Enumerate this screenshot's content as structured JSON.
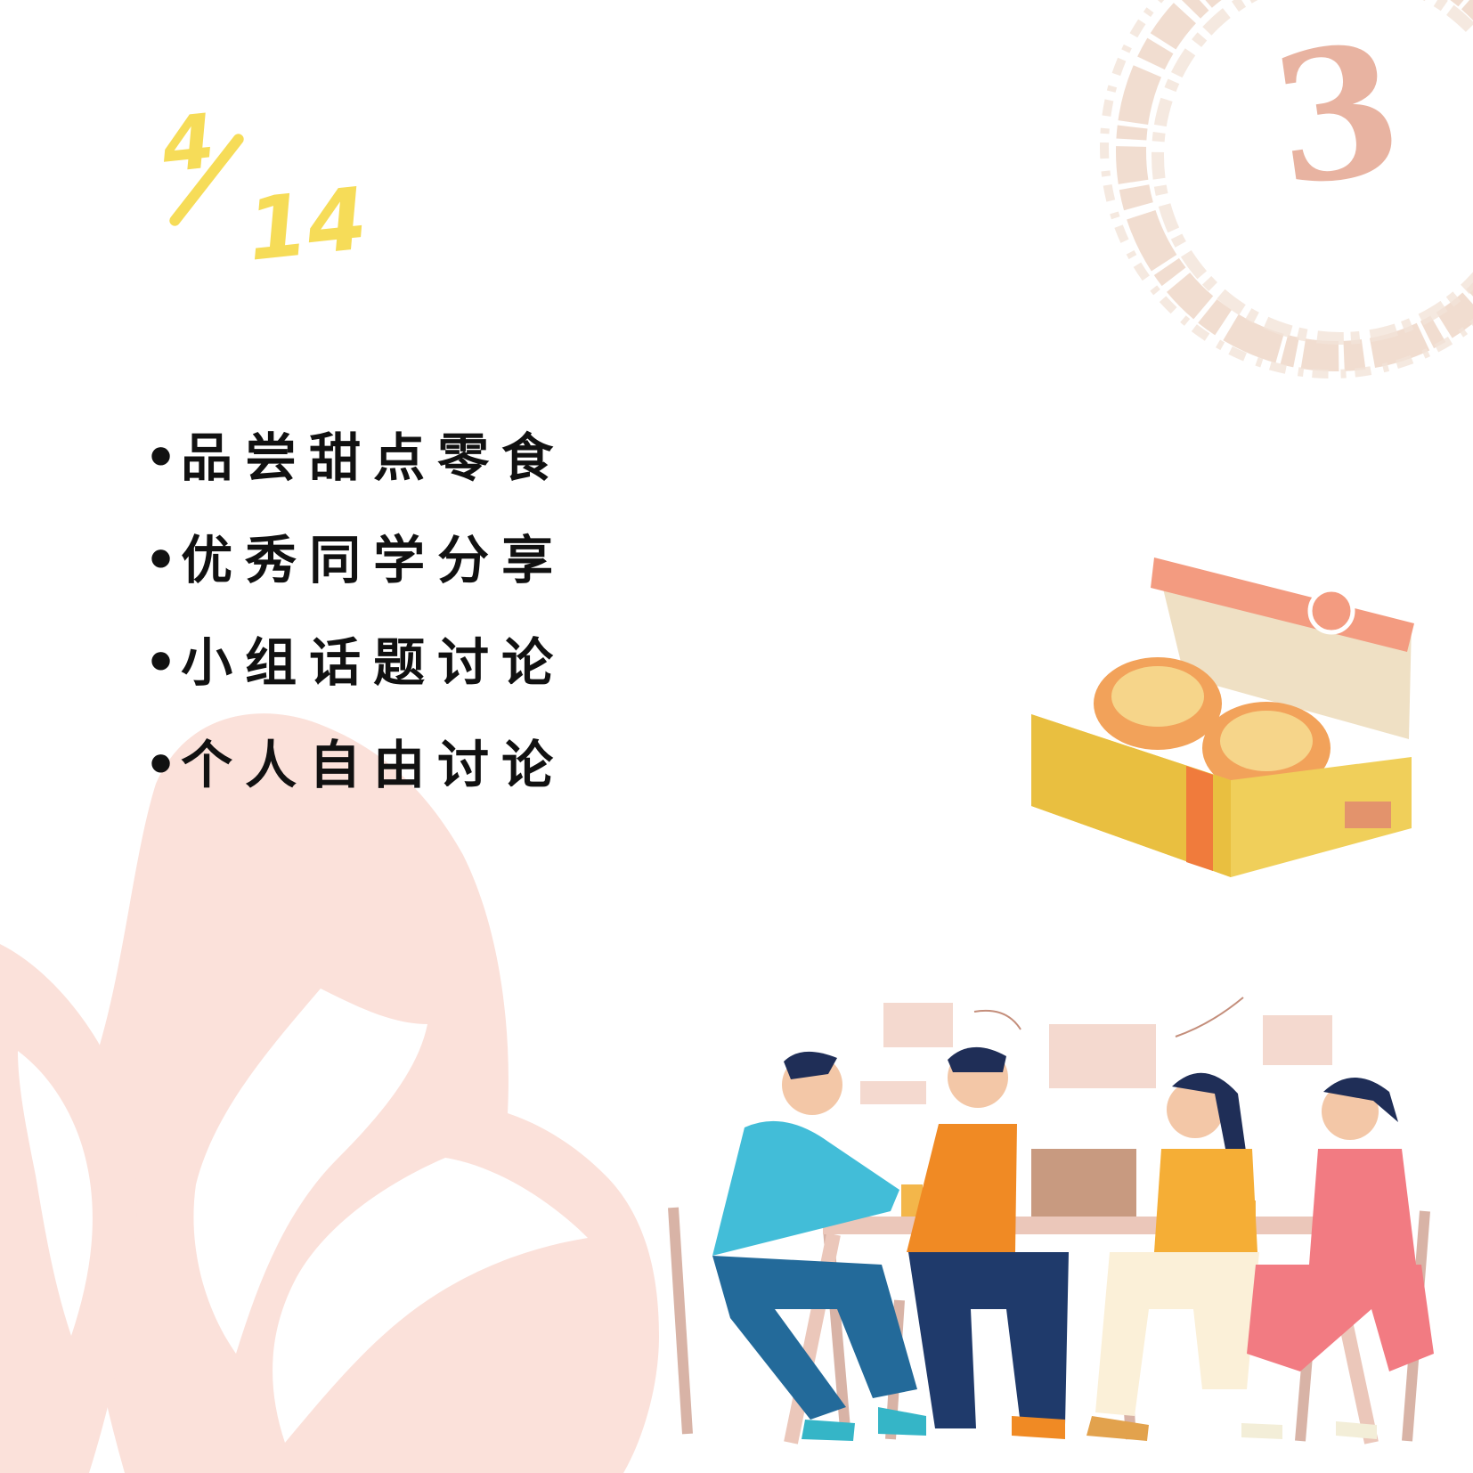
{
  "date": {
    "month": "4",
    "day": "14"
  },
  "page_number": "3",
  "agenda": {
    "items": [
      {
        "bullet": "•",
        "label": "品尝甜点零食"
      },
      {
        "bullet": "•",
        "label": "优秀同学分享"
      },
      {
        "bullet": "•",
        "label": "小组话题讨论"
      },
      {
        "bullet": "•",
        "label": "个人自由讨论"
      }
    ]
  },
  "colors": {
    "date_yellow": "#f6dc58",
    "brush_ring": "#efd9cb",
    "page_number": "#e8b3a1",
    "flower_pink": "#fbe1da",
    "text": "#111111"
  },
  "illustrations": {
    "decor_left": "flower-petal-illustration",
    "decor_top_right": "brush-ring-illustration",
    "snack": "egg-tart-box-illustration",
    "scene": "group-discussion-illustration"
  }
}
